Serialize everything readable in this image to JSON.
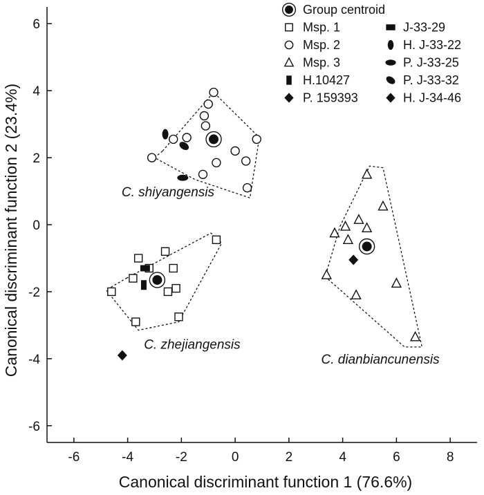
{
  "chart_data": {
    "type": "scatter",
    "xlabel": "Canonical discriminant function 1 (76.6%)",
    "ylabel": "Canonical discriminant function 2 (23.4%)",
    "xlim": [
      -7,
      9
    ],
    "ylim": [
      -6.5,
      6.5
    ],
    "xticks": [
      -6,
      -4,
      -2,
      0,
      2,
      4,
      6,
      8
    ],
    "yticks": [
      -6,
      -4,
      -2,
      0,
      2,
      4,
      6
    ],
    "legend_position": "top-right",
    "legend": [
      {
        "label": "Group centroid",
        "marker": "centroid"
      },
      {
        "label": "Msp. 1",
        "marker": "open-square"
      },
      {
        "label": "Msp. 2",
        "marker": "open-circle"
      },
      {
        "label": "Msp. 3",
        "marker": "open-triangle"
      },
      {
        "label": "H.10427",
        "marker": "filled-rect-v"
      },
      {
        "label": "P. 159393",
        "marker": "filled-diamond"
      },
      {
        "label": "J-33-29",
        "marker": "filled-rect-h"
      },
      {
        "label": "H. J-33-22",
        "marker": "filled-ellipse-v"
      },
      {
        "label": "P. J-33-25",
        "marker": "filled-ellipse-h"
      },
      {
        "label": "P. J-33-32",
        "marker": "filled-ellipse-tilt"
      },
      {
        "label": "H. J-34-46",
        "marker": "filled-diamond"
      }
    ],
    "groups": [
      {
        "name": "C. shiyangensis",
        "label_at": [
          -2.5,
          0.85
        ]
      },
      {
        "name": "C. zhejiangensis",
        "label_at": [
          -1.6,
          -3.7
        ]
      },
      {
        "name": "C. dianbiancunensis",
        "label_at": [
          5.4,
          -4.15
        ]
      }
    ],
    "hulls": [
      {
        "group": "C. shiyangensis",
        "points": [
          [
            -2.7,
            2.2
          ],
          [
            -0.8,
            3.95
          ],
          [
            0.9,
            2.6
          ],
          [
            0.55,
            0.8
          ],
          [
            -1.5,
            1.35
          ],
          [
            -3.0,
            2.0
          ]
        ]
      },
      {
        "group": "C. zhejiangensis",
        "points": [
          [
            -4.05,
            -1.6
          ],
          [
            -0.9,
            -0.25
          ],
          [
            -0.5,
            -0.55
          ],
          [
            -2.1,
            -2.9
          ],
          [
            -3.6,
            -3.15
          ],
          [
            -4.8,
            -1.95
          ]
        ]
      },
      {
        "group": "C. dianbiancunensis",
        "points": [
          [
            3.9,
            -0.05
          ],
          [
            5.0,
            1.75
          ],
          [
            5.5,
            1.7
          ],
          [
            6.95,
            -3.65
          ],
          [
            6.3,
            -3.65
          ],
          [
            3.35,
            -1.55
          ]
        ]
      }
    ],
    "series": [
      {
        "name": "Msp. 1",
        "marker": "open-square",
        "points": [
          [
            -4.6,
            -2.0
          ],
          [
            -3.8,
            -1.6
          ],
          [
            -3.6,
            -1.0
          ],
          [
            -3.2,
            -1.3
          ],
          [
            -2.5,
            -2.0
          ],
          [
            -2.2,
            -1.9
          ],
          [
            -2.6,
            -0.8
          ],
          [
            -2.3,
            -1.3
          ],
          [
            -0.7,
            -0.45
          ],
          [
            -3.7,
            -2.9
          ],
          [
            -2.1,
            -2.75
          ]
        ]
      },
      {
        "name": "Msp. 2",
        "marker": "open-circle",
        "points": [
          [
            -3.1,
            2.0
          ],
          [
            -2.3,
            2.55
          ],
          [
            -1.8,
            2.6
          ],
          [
            -1.1,
            2.95
          ],
          [
            -1.0,
            3.6
          ],
          [
            -0.8,
            3.95
          ],
          [
            -1.15,
            3.25
          ],
          [
            -0.7,
            1.85
          ],
          [
            -1.2,
            1.5
          ],
          [
            0.0,
            2.2
          ],
          [
            0.4,
            1.9
          ],
          [
            0.8,
            2.55
          ],
          [
            0.45,
            1.1
          ]
        ]
      },
      {
        "name": "Msp. 3",
        "marker": "open-triangle",
        "points": [
          [
            4.9,
            1.5
          ],
          [
            5.5,
            0.55
          ],
          [
            3.7,
            -0.25
          ],
          [
            4.1,
            -0.05
          ],
          [
            4.2,
            -0.45
          ],
          [
            4.6,
            0.15
          ],
          [
            4.9,
            -0.1
          ],
          [
            3.4,
            -1.5
          ],
          [
            4.5,
            -2.1
          ],
          [
            6.0,
            -1.75
          ],
          [
            6.7,
            -3.35
          ]
        ]
      },
      {
        "name": "H.10427",
        "marker": "filled-rect-v",
        "points": [
          [
            -3.4,
            -1.8
          ]
        ]
      },
      {
        "name": "J-33-29",
        "marker": "filled-rect-h",
        "points": [
          [
            -3.35,
            -1.3
          ]
        ]
      },
      {
        "name": "H. J-33-22",
        "marker": "filled-ellipse-v",
        "points": [
          [
            -2.6,
            2.7
          ]
        ]
      },
      {
        "name": "P. J-33-25",
        "marker": "filled-ellipse-h",
        "points": [
          [
            -1.95,
            1.4
          ]
        ]
      },
      {
        "name": "P. J-33-32",
        "marker": "filled-ellipse-tilt",
        "points": [
          [
            -1.9,
            2.35
          ]
        ]
      },
      {
        "name": "P. 159393",
        "marker": "filled-diamond",
        "points": [
          [
            -4.2,
            -3.9
          ]
        ]
      },
      {
        "name": "H. J-34-46",
        "marker": "filled-diamond",
        "points": [
          [
            4.4,
            -1.05
          ]
        ]
      },
      {
        "name": "Group centroid",
        "marker": "centroid",
        "points": [
          [
            -0.8,
            2.55
          ],
          [
            -2.9,
            -1.65
          ],
          [
            4.9,
            -0.65
          ]
        ]
      }
    ]
  }
}
